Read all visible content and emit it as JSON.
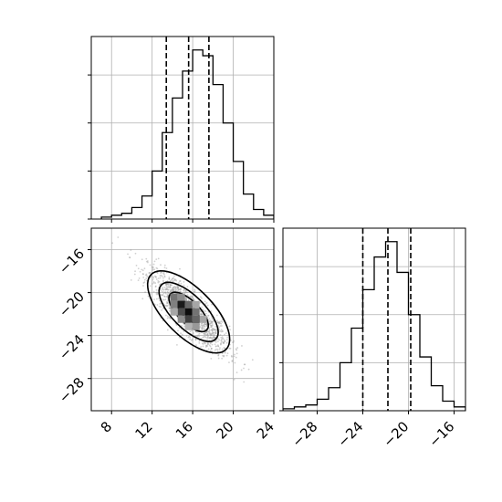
{
  "chart_data": {
    "type": "corner",
    "grid": true,
    "histogram_x": {
      "type": "histogram",
      "xlim": [
        6,
        24
      ],
      "bin_edges": [
        7,
        8,
        9,
        10,
        11,
        12,
        13,
        14,
        15,
        16,
        17,
        18,
        19,
        20,
        21,
        22,
        23,
        24
      ],
      "counts": [
        1,
        2,
        3,
        6,
        12,
        25,
        45,
        63,
        77,
        88,
        85,
        70,
        50,
        30,
        13,
        5,
        2
      ],
      "ymax": 95,
      "quantile_lines": [
        13.4,
        15.6,
        17.6
      ],
      "x_ticks": [
        8,
        12,
        16,
        20,
        24
      ],
      "x_tick_labels": [
        "8",
        "12",
        "16",
        "20",
        "24"
      ]
    },
    "histogram_y": {
      "type": "histogram",
      "xlim": [
        -31,
        -15
      ],
      "bin_edges": [
        -31,
        -30,
        -29,
        -28,
        -27,
        -26,
        -25,
        -24,
        -23,
        -22,
        -21,
        -20,
        -19,
        -18,
        -17,
        -16,
        -15
      ],
      "counts": [
        1,
        2,
        3,
        6,
        12,
        25,
        43,
        63,
        80,
        88,
        72,
        50,
        28,
        13,
        5,
        2
      ],
      "ymax": 95,
      "quantile_lines": [
        -24.0,
        -21.8,
        -19.8
      ],
      "x_ticks": [
        -28,
        -24,
        -20,
        -16
      ],
      "x_tick_labels": [
        "−28",
        "−24",
        "−20",
        "−16"
      ]
    },
    "scatter_2d": {
      "type": "heatmap",
      "xlim": [
        6,
        24
      ],
      "ylim": [
        -31,
        -14
      ],
      "center": [
        15.6,
        -21.8
      ],
      "x_ticks": [
        8,
        12,
        16,
        20,
        24
      ],
      "x_tick_labels": [
        "8",
        "12",
        "16",
        "20",
        "24"
      ],
      "y_ticks": [
        -16,
        -20,
        -24,
        -28
      ],
      "y_tick_labels": [
        "−16",
        "−20",
        "−24",
        "−28"
      ],
      "contour_levels": [
        "0.5σ",
        "1σ",
        "1.5σ",
        "2σ"
      ]
    }
  }
}
